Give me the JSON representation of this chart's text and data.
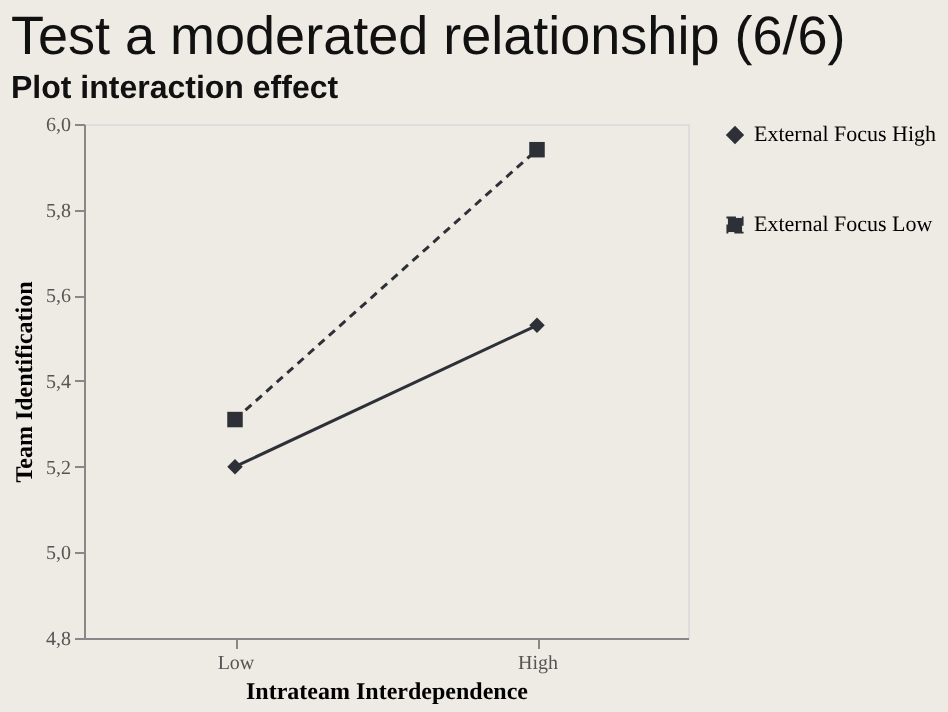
{
  "chart_data": {
    "type": "line",
    "title": "Test a moderated relationship (6/6)",
    "subtitle": "Plot interaction effect",
    "xlabel": "Intrateam Interdependence",
    "ylabel": "Team Identification",
    "categories": [
      "Low",
      "High"
    ],
    "series": [
      {
        "name": "External Focus High",
        "color": "#2e3038",
        "values": [
          5.2,
          5.53
        ],
        "marker": "diamond",
        "line_style": "solid"
      },
      {
        "name": "External Focus Low",
        "color": "#2e3038",
        "values": [
          5.31,
          5.94
        ],
        "marker": "square",
        "line_style": "dashed"
      }
    ],
    "ylim": [
      4.8,
      6.0
    ],
    "yticks": [
      {
        "value": 4.8,
        "label": "4,8"
      },
      {
        "value": 5.0,
        "label": "5,0"
      },
      {
        "value": 5.2,
        "label": "5,2"
      },
      {
        "value": 5.4,
        "label": "5,4"
      },
      {
        "value": 5.6,
        "label": "5,6"
      },
      {
        "value": 5.8,
        "label": "5,8"
      },
      {
        "value": 6.0,
        "label": "6,0"
      }
    ],
    "grid": false,
    "legend": "right"
  }
}
